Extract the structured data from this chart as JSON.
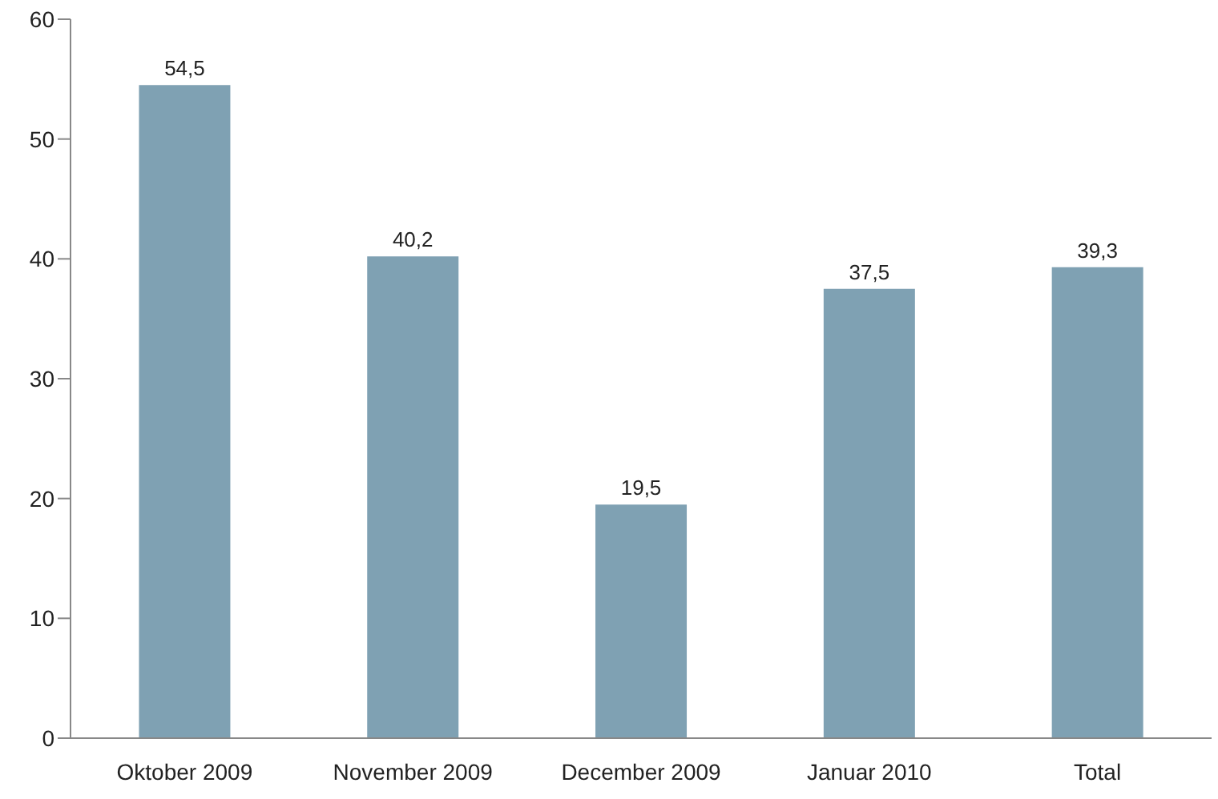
{
  "chart_data": {
    "type": "bar",
    "categories": [
      "Oktober 2009",
      "November 2009",
      "December 2009",
      "Januar 2010",
      "Total"
    ],
    "values": [
      54.5,
      40.2,
      19.5,
      37.5,
      39.3
    ],
    "value_labels": [
      "54,5",
      "40,2",
      "19,5",
      "37,5",
      "39,3"
    ],
    "color": "#7fa1b3",
    "ylim": [
      0,
      60
    ],
    "yticks": [
      0,
      10,
      20,
      30,
      40,
      50,
      60
    ],
    "grid": false
  }
}
